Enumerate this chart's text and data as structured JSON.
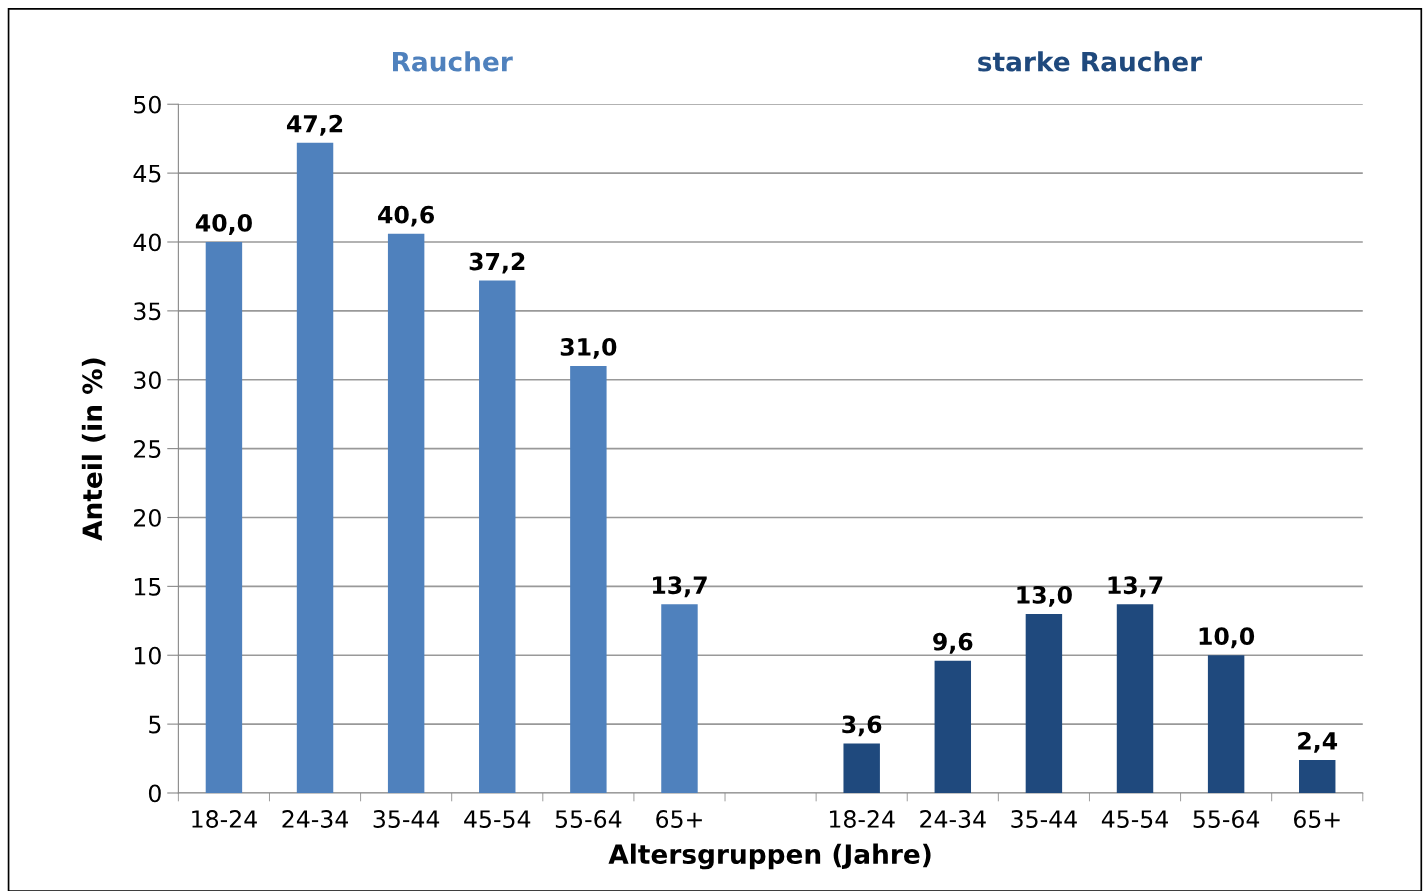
{
  "chart_data": {
    "type": "bar",
    "xlabel": "Altersgruppen (Jahre)",
    "ylabel": "Anteil (in %)",
    "categories": [
      "18-24",
      "24-34",
      "35-44",
      "45-54",
      "55-64",
      "65+",
      null,
      "18-24",
      "24-34",
      "35-44",
      "45-54",
      "55-64",
      "65+"
    ],
    "series": [
      {
        "name": "Raucher",
        "color": "#4f81bd",
        "values": [
          40.0,
          47.2,
          40.6,
          37.2,
          31.0,
          13.7,
          null,
          null,
          null,
          null,
          null,
          null,
          null
        ],
        "value_labels": [
          "40,0",
          "47,2",
          "40,6",
          "37,2",
          "31,0",
          "13,7",
          null,
          null,
          null,
          null,
          null,
          null,
          null
        ]
      },
      {
        "name": "starke Raucher",
        "color": "#1f497d",
        "values": [
          null,
          null,
          null,
          null,
          null,
          null,
          null,
          3.6,
          9.6,
          13.0,
          13.7,
          10.0,
          2.4
        ],
        "value_labels": [
          null,
          null,
          null,
          null,
          null,
          null,
          null,
          "3,6",
          "9,6",
          "13,0",
          "13,7",
          "10,0",
          "2,4"
        ]
      }
    ],
    "ylim": [
      0,
      50
    ],
    "yticks": [
      0,
      5,
      10,
      15,
      20,
      25,
      30,
      35,
      40,
      45,
      50
    ],
    "grid": "y",
    "legend": false
  }
}
